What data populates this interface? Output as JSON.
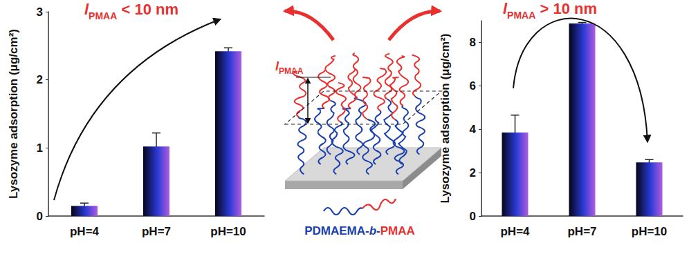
{
  "chart_data": [
    {
      "type": "bar",
      "title": "lPMAA < 10 nm",
      "ylabel": "Lysozyme adsorption (μg/cm²)",
      "categories": [
        "pH=4",
        "pH=7",
        "pH=10"
      ],
      "values": [
        0.15,
        1.02,
        2.42
      ],
      "errors": [
        0.04,
        0.2,
        0.05
      ],
      "color": "#2a3ad6",
      "ylim": [
        0,
        3
      ],
      "yticks": [
        0,
        1,
        2,
        3
      ],
      "grid": false
    },
    {
      "type": "bar",
      "title": "lPMAA > 10 nm",
      "ylabel": "Lysozyme adsorption (μg/cm²)",
      "categories": [
        "pH=4",
        "pH=7",
        "pH=10"
      ],
      "values": [
        3.85,
        8.87,
        2.47
      ],
      "errors": [
        0.8,
        0.05,
        0.13
      ],
      "color": "#2a3ad6",
      "ylim": [
        0,
        9
      ],
      "yticks": [
        0,
        2,
        4,
        6,
        8
      ],
      "grid": false
    }
  ],
  "diagram": {
    "dimension_label": "lPMAA",
    "polymer_label": "PDMAEMA-b-PMAA"
  }
}
